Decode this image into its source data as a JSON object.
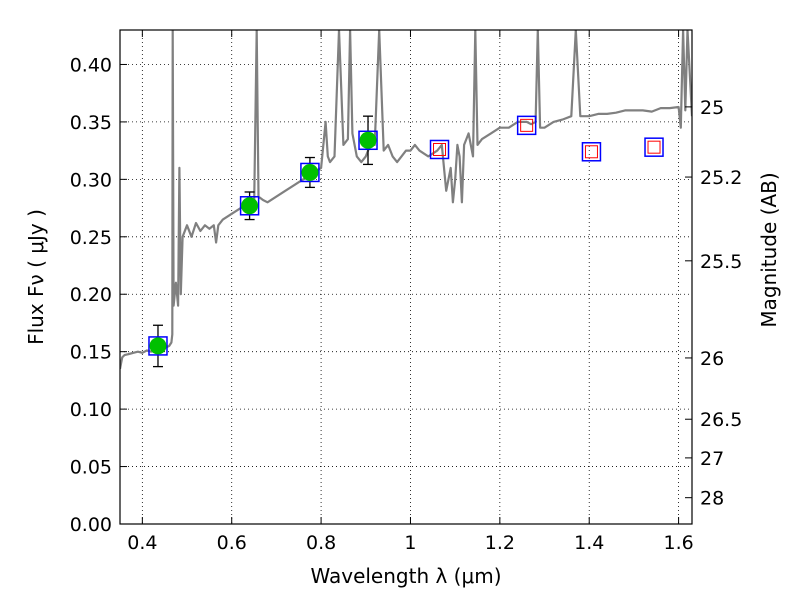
{
  "chart_data": {
    "type": "scatter",
    "xlabel": "Wavelength  λ (μm)",
    "ylabel": "Flux  Fν  ( μJy )",
    "ylabel_right": "Magnitude (AB)",
    "xlim": [
      0.35,
      1.63
    ],
    "ylim": [
      0.0,
      0.43
    ],
    "grid": true,
    "x_ticks": [
      {
        "value": 0.4,
        "label": "0.4"
      },
      {
        "value": 0.6,
        "label": "0.6"
      },
      {
        "value": 0.8,
        "label": "0.8"
      },
      {
        "value": 1.0,
        "label": "1"
      },
      {
        "value": 1.2,
        "label": "1.2"
      },
      {
        "value": 1.4,
        "label": "1.4"
      },
      {
        "value": 1.6,
        "label": "1.6"
      }
    ],
    "y_ticks": [
      {
        "value": 0.0,
        "label": "0.00"
      },
      {
        "value": 0.05,
        "label": "0.05"
      },
      {
        "value": 0.1,
        "label": "0.10"
      },
      {
        "value": 0.15,
        "label": "0.15"
      },
      {
        "value": 0.2,
        "label": "0.20"
      },
      {
        "value": 0.25,
        "label": "0.25"
      },
      {
        "value": 0.3,
        "label": "0.30"
      },
      {
        "value": 0.35,
        "label": "0.35"
      },
      {
        "value": 0.4,
        "label": "0.40"
      }
    ],
    "right_ticks": [
      {
        "value": 25,
        "label": "25"
      },
      {
        "value": 25.2,
        "label": "25.2"
      },
      {
        "value": 25.5,
        "label": "25.5"
      },
      {
        "value": 26,
        "label": "26"
      },
      {
        "value": 26.5,
        "label": "26.5"
      },
      {
        "value": 27,
        "label": "27"
      },
      {
        "value": 28,
        "label": "28"
      }
    ],
    "model_sed": {
      "color": "#808080",
      "x": [
        0.35,
        0.355,
        0.36,
        0.37,
        0.38,
        0.39,
        0.4,
        0.41,
        0.42,
        0.43,
        0.44,
        0.45,
        0.46,
        0.465,
        0.467,
        0.468,
        0.47,
        0.475,
        0.48,
        0.483,
        0.486,
        0.49,
        0.5,
        0.51,
        0.52,
        0.53,
        0.54,
        0.55,
        0.56,
        0.565,
        0.57,
        0.58,
        0.6,
        0.62,
        0.64,
        0.65,
        0.656,
        0.66,
        0.67,
        0.68,
        0.7,
        0.72,
        0.74,
        0.76,
        0.78,
        0.8,
        0.81,
        0.815,
        0.82,
        0.83,
        0.84,
        0.85,
        0.86,
        0.865,
        0.87,
        0.88,
        0.89,
        0.9,
        0.91,
        0.92,
        0.93,
        0.94,
        0.95,
        0.96,
        0.97,
        0.98,
        0.99,
        1.0,
        1.01,
        1.02,
        1.04,
        1.06,
        1.07,
        1.08,
        1.09,
        1.095,
        1.1,
        1.105,
        1.11,
        1.115,
        1.12,
        1.13,
        1.14,
        1.145,
        1.15,
        1.16,
        1.18,
        1.2,
        1.22,
        1.24,
        1.26,
        1.27,
        1.28,
        1.285,
        1.29,
        1.3,
        1.32,
        1.34,
        1.36,
        1.37,
        1.38,
        1.4,
        1.42,
        1.44,
        1.46,
        1.48,
        1.5,
        1.52,
        1.54,
        1.56,
        1.58,
        1.6,
        1.605,
        1.61,
        1.615,
        1.62,
        1.63
      ],
      "y": [
        0.135,
        0.145,
        0.147,
        0.148,
        0.149,
        0.15,
        0.149,
        0.151,
        0.15,
        0.152,
        0.153,
        0.153,
        0.155,
        0.158,
        0.165,
        0.43,
        0.19,
        0.21,
        0.19,
        0.31,
        0.2,
        0.25,
        0.26,
        0.25,
        0.262,
        0.255,
        0.26,
        0.257,
        0.26,
        0.245,
        0.26,
        0.265,
        0.27,
        0.275,
        0.28,
        0.275,
        0.43,
        0.285,
        0.282,
        0.28,
        0.285,
        0.29,
        0.295,
        0.3,
        0.305,
        0.31,
        0.35,
        0.32,
        0.315,
        0.32,
        0.43,
        0.33,
        0.335,
        0.43,
        0.34,
        0.32,
        0.315,
        0.32,
        0.33,
        0.33,
        0.43,
        0.325,
        0.33,
        0.32,
        0.315,
        0.32,
        0.325,
        0.325,
        0.33,
        0.325,
        0.32,
        0.325,
        0.33,
        0.29,
        0.31,
        0.28,
        0.3,
        0.33,
        0.32,
        0.28,
        0.33,
        0.34,
        0.32,
        0.43,
        0.33,
        0.335,
        0.34,
        0.345,
        0.345,
        0.35,
        0.35,
        0.348,
        0.35,
        0.43,
        0.345,
        0.345,
        0.35,
        0.352,
        0.355,
        0.43,
        0.355,
        0.355,
        0.357,
        0.357,
        0.358,
        0.36,
        0.36,
        0.36,
        0.359,
        0.362,
        0.362,
        0.363,
        0.345,
        0.43,
        0.36,
        0.43,
        0.355
      ]
    },
    "detections": {
      "color": "#00c000",
      "box_color": "#0000ff",
      "points": [
        {
          "x": 0.435,
          "y": 0.155,
          "yerr": 0.018
        },
        {
          "x": 0.64,
          "y": 0.277,
          "yerr": 0.012
        },
        {
          "x": 0.775,
          "y": 0.306,
          "yerr": 0.013
        },
        {
          "x": 0.905,
          "y": 0.334,
          "yerr": 0.021
        }
      ]
    },
    "upper_limits": {
      "outer_color": "#0000ff",
      "inner_color": "#ff0000",
      "points": [
        {
          "x": 1.065,
          "y": 0.326
        },
        {
          "x": 1.26,
          "y": 0.347
        },
        {
          "x": 1.405,
          "y": 0.324
        },
        {
          "x": 1.545,
          "y": 0.328
        }
      ]
    }
  }
}
